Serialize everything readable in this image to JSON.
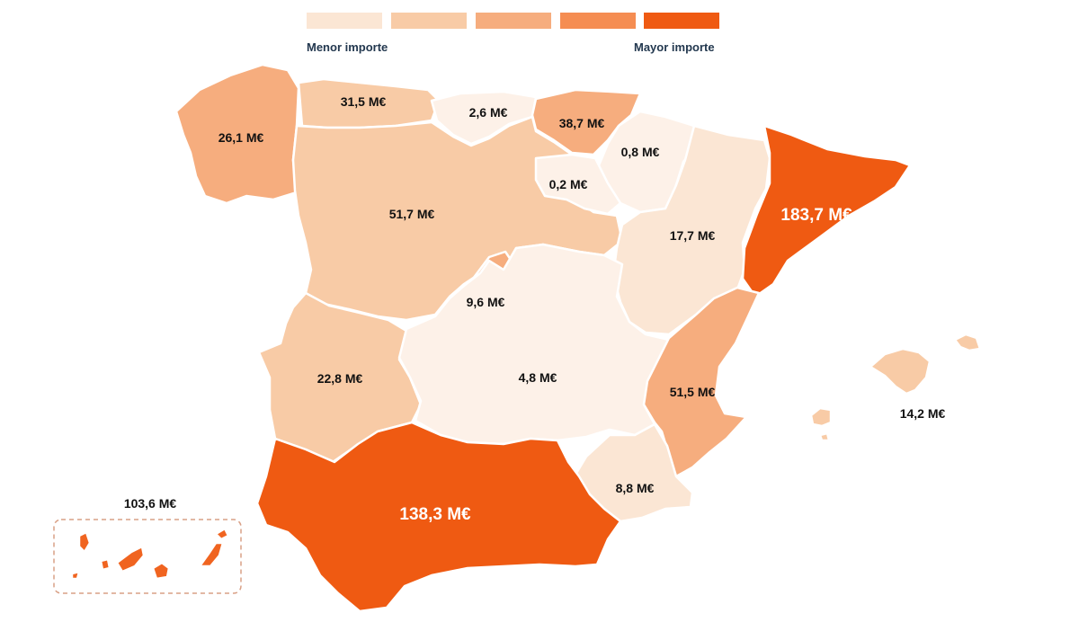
{
  "legend": {
    "colors": [
      "#fbe6d4",
      "#f8cba6",
      "#f6ad7e",
      "#f58d52",
      "#ef5a12"
    ],
    "min_label": "Menor importe",
    "max_label": "Mayor importe"
  },
  "regions": {
    "galicia": {
      "value": "26,1 M€",
      "color": "#f6ad7e"
    },
    "cantabria_asturias": {
      "value": "31,5 M€",
      "color": "#f8cba6"
    },
    "cantabria": {
      "value": "2,6 M€",
      "color": "#fdf1e8"
    },
    "pais_vasco": {
      "value": "38,7 M€",
      "color": "#f6ad7e"
    },
    "navarra": {
      "value": "0,8 M€",
      "color": "#fdf1e8"
    },
    "la_rioja": {
      "value": "0,2 M€",
      "color": "#fdf1e8"
    },
    "castilla_leon": {
      "value": "51,7 M€",
      "color": "#f8cba6"
    },
    "aragon": {
      "value": "17,7 M€",
      "color": "#fbe6d4"
    },
    "cataluna": {
      "value": "183,7 M€",
      "color": "#ef5a12"
    },
    "madrid": {
      "value": "9,6 M€",
      "color": "#f6ad7e"
    },
    "extremadura": {
      "value": "22,8 M€",
      "color": "#f8cba6"
    },
    "castilla_la_mancha": {
      "value": "4,8 M€",
      "color": "#fdf1e8"
    },
    "valencia": {
      "value": "51,5 M€",
      "color": "#f6ad7e"
    },
    "baleares": {
      "value": "14,2 M€",
      "color": "#f8cba6"
    },
    "murcia": {
      "value": "8,8 M€",
      "color": "#fbe6d4"
    },
    "andalucia": {
      "value": "138,3 M€",
      "color": "#ef5a12"
    },
    "canarias": {
      "value": "103,6 M€",
      "color": "#f06420"
    }
  }
}
